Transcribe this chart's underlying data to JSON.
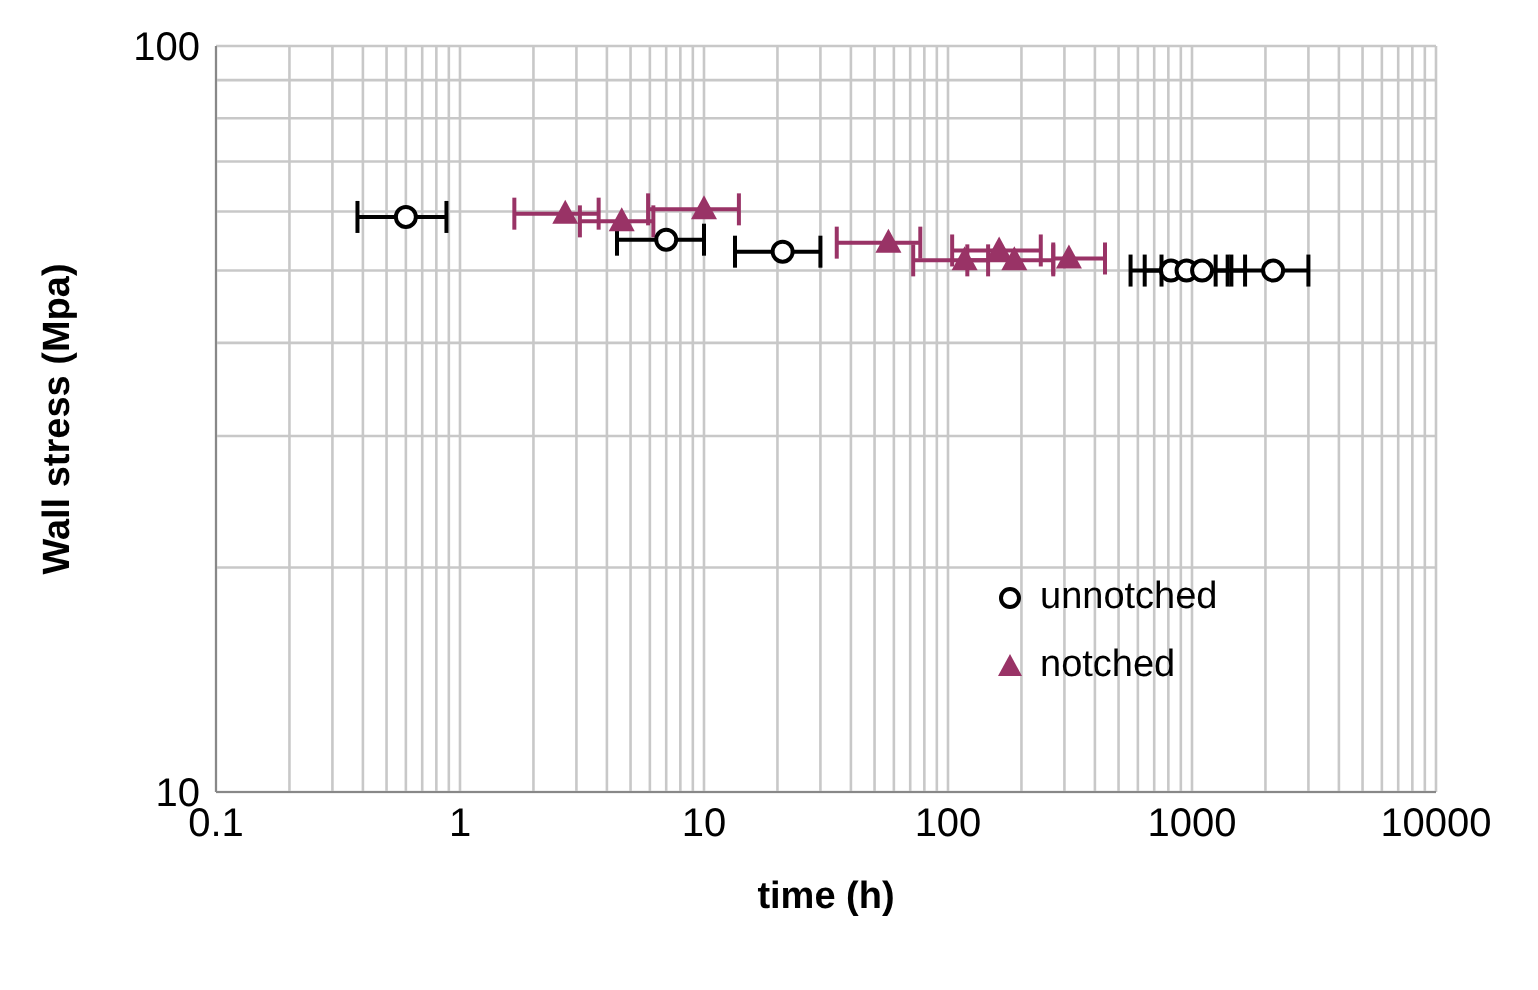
{
  "chart_data": {
    "type": "scatter",
    "xlabel": "time (h)",
    "ylabel": "Wall stress (Mpa)",
    "log": "xy",
    "xlim": [
      0.1,
      10000
    ],
    "xticks": [
      0.1,
      1,
      10,
      100,
      1000,
      10000
    ],
    "ylim": [
      10,
      100
    ],
    "yticks": [
      10,
      100
    ],
    "grid": true,
    "legend": "right",
    "series": [
      {
        "name": "unnotched",
        "color": "#000000",
        "marker": "circle",
        "x": [
          0.6,
          7,
          21,
          820,
          950,
          1100,
          2150
        ],
        "values": [
          59,
          55,
          53,
          50,
          50,
          50,
          50
        ],
        "xerrors": [
          [
            0.38,
            0.88
          ],
          [
            4.4,
            10
          ],
          [
            13.4,
            30
          ],
          [
            560,
            1250
          ],
          [
            640,
            1400
          ],
          [
            750,
            1650
          ],
          [
            1450,
            3000
          ]
        ]
      },
      {
        "name": "notched",
        "color": "#993366",
        "marker": "triangle",
        "x": [
          2.7,
          4.6,
          10,
          57,
          117,
          162,
          187,
          313
        ],
        "values": [
          59.6,
          58.2,
          60.4,
          54.5,
          51.6,
          53.2,
          51.6,
          51.9
        ],
        "xerrors": [
          [
            1.67,
            3.7
          ],
          [
            3.1,
            6.2
          ],
          [
            5.9,
            13.9
          ],
          [
            35,
            77
          ],
          [
            72,
            146
          ],
          [
            104,
            240
          ],
          [
            120,
            270
          ],
          [
            270,
            440
          ]
        ]
      }
    ]
  }
}
